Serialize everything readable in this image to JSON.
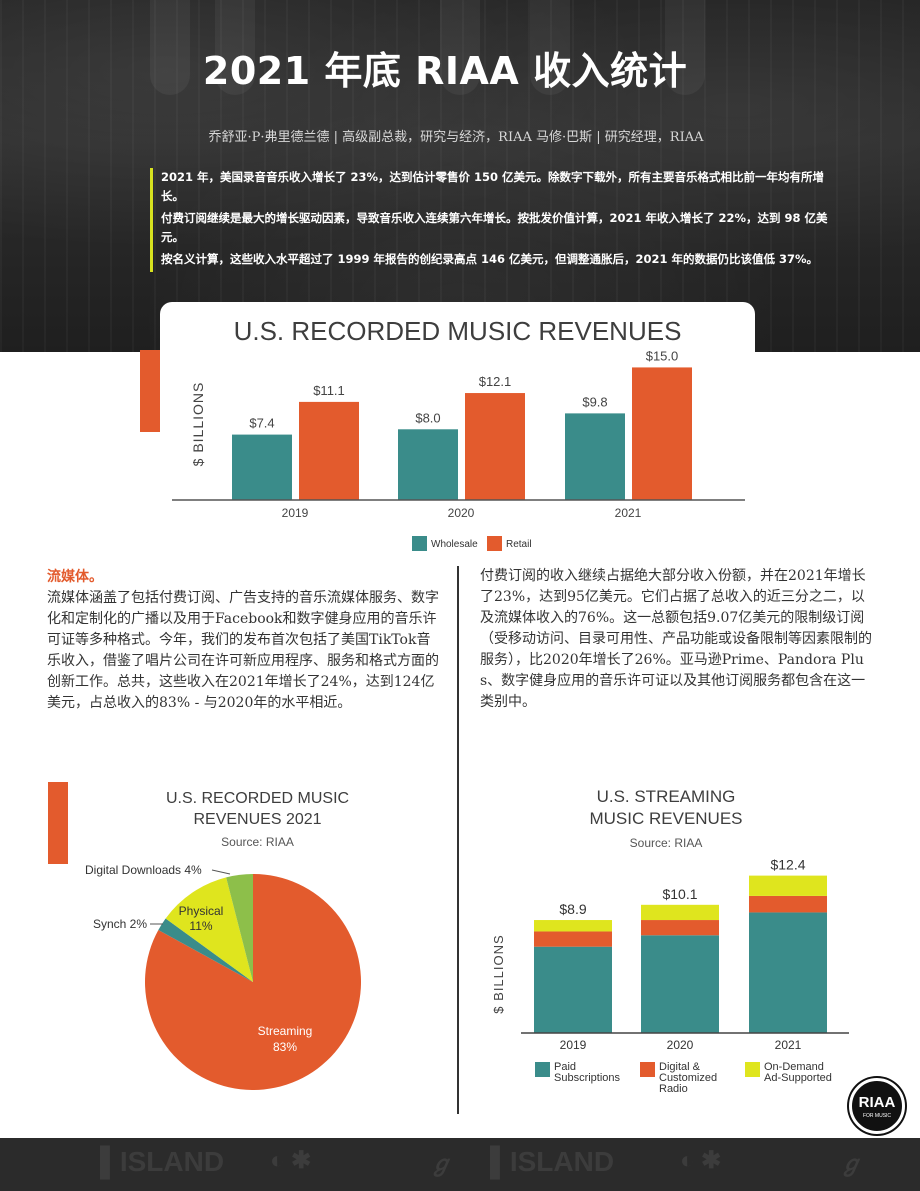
{
  "header": {
    "title": "2021 年底 RIAA 收入统计",
    "byline": "乔舒亚·P·弗里德兰德 | 高级副总裁，研究与经济，RIAA 马修·巴斯 | 研究经理，RIAA",
    "summary": [
      "2021 年，美国录音音乐收入增长了 23%，达到估计零售价 150 亿美元。除数字下载外，所有主要音乐格式相比前一年均有所增长。",
      "付费订阅继续是最大的增长驱动因素，导致音乐收入连续第六年增长。按批发价值计算，2021 年收入增长了 22%，达到 98 亿美元。",
      "按名义计算，这些收入水平超过了 1999 年报告的创纪录高点 146 亿美元，但调整通胀后，2021 年的数据仍比该值低 37%。"
    ]
  },
  "body": {
    "section_heading": "流媒体。",
    "left_paragraph": "流媒体涵盖了包括付费订阅、广告支持的音乐流媒体服务、数字化和定制化的广播以及用于Facebook和数字健身应用的音乐许可证等多种格式。今年，我们的发布首次包括了美国TikTok音乐收入，借鉴了唱片公司在许可新应用程序、服务和格式方面的创新工作。总共，这些收入在2021年增长了24%，达到124亿美元，占总收入的83% - 与2020年的水平相近。",
    "right_paragraph": "付费订阅的收入继续占据绝大部分收入份额，并在2021年增长了23%，达到95亿美元。它们占据了总收入的近三分之二，以及流媒体收入的76%。这一总额包括9.07亿美元的限制级订阅（受移动访问、目录可用性、产品功能或设备限制等因素限制的服务），比2020年增长了26%。亚马逊Prime、Pandora Plus、数字健身应用的音乐许可证以及其他订阅服务都包含在这一类别中。"
  },
  "logo": {
    "text": "RIAA",
    "sub": "FOR MUSIC"
  },
  "colors": {
    "orange": "#e35b2d",
    "teal": "#3a8c8a",
    "yellow": "#dfe51e",
    "green": "#8dbf4a",
    "dark": "#2a2a2a"
  },
  "chart_data": [
    {
      "type": "bar",
      "title": "U.S. RECORDED MUSIC REVENUES",
      "ylabel": "$ BILLIONS",
      "categories": [
        "2019",
        "2020",
        "2021"
      ],
      "ylim": [
        0,
        15.5
      ],
      "series": [
        {
          "name": "Wholesale",
          "color": "#3a8c8a",
          "values": [
            7.4,
            8.0,
            9.8
          ],
          "labels": [
            "$7.4",
            "$8.0",
            "$9.8"
          ]
        },
        {
          "name": "Retail",
          "color": "#e35b2d",
          "values": [
            11.1,
            12.1,
            15.0
          ],
          "labels": [
            "$11.1",
            "$12.1",
            "$15.0"
          ]
        }
      ]
    },
    {
      "type": "pie",
      "title_lines": [
        "U.S. RECORDED MUSIC",
        "REVENUES 2021"
      ],
      "source": "Source: RIAA",
      "slices": [
        {
          "label": "Streaming",
          "value_label": "83%",
          "value": 83,
          "color": "#e35b2d"
        },
        {
          "label": "Synch 2%",
          "value": 2,
          "color": "#3a8c8a"
        },
        {
          "label": "Physical",
          "value_label": "11%",
          "value": 11,
          "color": "#dfe51e"
        },
        {
          "label": "Digital Downloads 4%",
          "value": 4,
          "color": "#8dbf4a"
        }
      ]
    },
    {
      "type": "bar",
      "stacked": true,
      "title_lines": [
        "U.S. STREAMING",
        "MUSIC REVENUES"
      ],
      "source": "Source: RIAA",
      "ylabel": "$ BILLIONS",
      "categories": [
        "2019",
        "2020",
        "2021"
      ],
      "ylim": [
        0,
        13.0
      ],
      "totals": [
        "$8.9",
        "$10.1",
        "$12.4"
      ],
      "series": [
        {
          "name": "Paid Subscriptions",
          "color": "#3a8c8a",
          "values": [
            6.8,
            7.7,
            9.5
          ]
        },
        {
          "name": "Digital & Customized Radio",
          "color": "#e35b2d",
          "values": [
            1.2,
            1.2,
            1.3
          ]
        },
        {
          "name": "On-Demand Ad-Supported",
          "color": "#dfe51e",
          "values": [
            0.9,
            1.2,
            1.6
          ]
        }
      ]
    }
  ]
}
